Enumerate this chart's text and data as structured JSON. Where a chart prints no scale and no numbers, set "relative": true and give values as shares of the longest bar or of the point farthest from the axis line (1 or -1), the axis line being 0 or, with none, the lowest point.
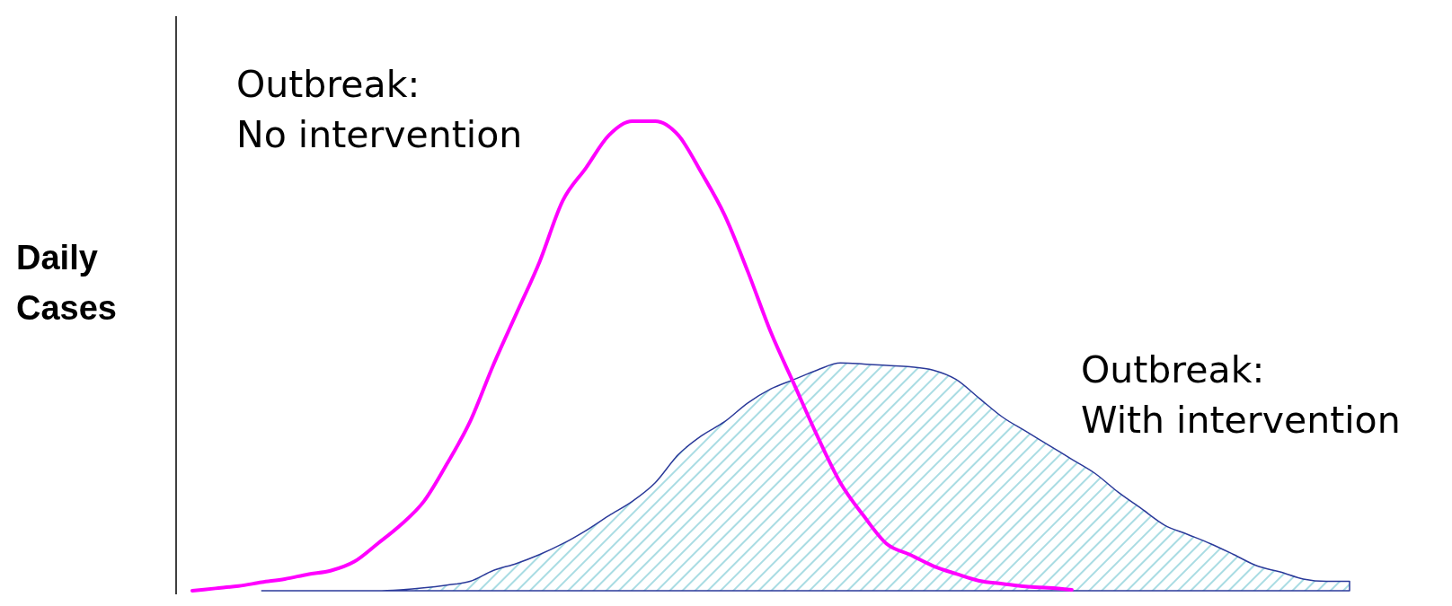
{
  "chart_data": {
    "type": "line",
    "relative": true,
    "ylabel": "Daily Cases",
    "categories": [
      null,
      null,
      null,
      null,
      null,
      null,
      null,
      null,
      null,
      null,
      null,
      null,
      null,
      null,
      null,
      null,
      null,
      null,
      null,
      null,
      null,
      null,
      null,
      null,
      null,
      null,
      null,
      null,
      null,
      null,
      null,
      null,
      null,
      null,
      null,
      null,
      null,
      null,
      null,
      null,
      null,
      null,
      null,
      null,
      null,
      null,
      null,
      null,
      null,
      null,
      null
    ],
    "series": [
      {
        "name": "Outbreak: No intervention",
        "color": "#ff00ff",
        "values": [
          0,
          0.005,
          0.01,
          0.018,
          0.025,
          0.035,
          0.043,
          0.062,
          0.1,
          0.14,
          0.19,
          0.27,
          0.36,
          0.48,
          0.59,
          0.7,
          0.83,
          0.9,
          0.97,
          1,
          1,
          0.97,
          0.89,
          0.8,
          0.68,
          0.55,
          0.44,
          0.33,
          0.23,
          0.16,
          0.1,
          0.077,
          0.053,
          0.036,
          0.021,
          0.015,
          0.009,
          0.006,
          0.002,
          null,
          null,
          null,
          null,
          null,
          null,
          null,
          null,
          null,
          null,
          null,
          null
        ]
      },
      {
        "name": "Outbreak: With intervention",
        "type": "area",
        "color": "#2b3a9a",
        "values": [
          null,
          null,
          null,
          0,
          0,
          0,
          0,
          0,
          0,
          0.002,
          0.006,
          0.012,
          0.02,
          0.043,
          0.058,
          0.077,
          0.1,
          0.128,
          0.16,
          0.19,
          0.23,
          0.29,
          0.33,
          0.36,
          0.4,
          0.43,
          0.45,
          0.47,
          0.485,
          0.483,
          0.48,
          0.477,
          0.47,
          0.45,
          0.41,
          0.37,
          0.34,
          0.31,
          0.28,
          0.25,
          0.21,
          0.175,
          0.14,
          0.12,
          0.1,
          0.077,
          0.053,
          0.04,
          0.025,
          0.02,
          0.02
        ]
      }
    ]
  }
}
